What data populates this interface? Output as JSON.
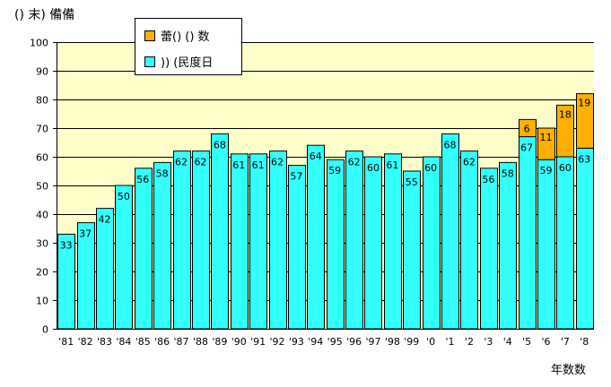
{
  "chart_data": {
    "type": "bar",
    "stacked": true,
    "title": "",
    "ylabel": "() 末) 備備",
    "xlabel": "年数数",
    "ylim": [
      0,
      100
    ],
    "yticks": [
      0,
      10,
      20,
      30,
      40,
      50,
      60,
      70,
      80,
      90,
      100
    ],
    "grid": true,
    "legend_position": "top-left",
    "categories": [
      "'81",
      "'82",
      "'83",
      "'84",
      "'85",
      "'86",
      "'87",
      "'88",
      "'89",
      "'90",
      "'91",
      "'92",
      "'93",
      "'94",
      "'95",
      "'96",
      "'97",
      "'98",
      "'99",
      "'0",
      "'1",
      "'2",
      "'3",
      "'4",
      "'5",
      "'6",
      "'7",
      "'8"
    ],
    "series": [
      {
        "name": ")) (民度日",
        "color": "#33ffff",
        "values": [
          33,
          37,
          42,
          50,
          56,
          58,
          62,
          62,
          68,
          61,
          61,
          62,
          57,
          64,
          59,
          62,
          60,
          61,
          55,
          60,
          68,
          62,
          56,
          58,
          67,
          59,
          60,
          63
        ],
        "labels": [
          "33",
          "37",
          "42",
          "50",
          "56",
          "58",
          "62",
          "62",
          "68",
          "61",
          "61",
          "62",
          "57",
          "64",
          "59",
          "62",
          "60",
          "61",
          "55",
          "60",
          "68",
          "62",
          "56",
          "58",
          "67",
          "59",
          "60",
          "63"
        ]
      },
      {
        "name": "蕾() () 数",
        "color": "#ffb000",
        "values": [
          0,
          0,
          0,
          0,
          0,
          0,
          0,
          0,
          0,
          0,
          0,
          0,
          0,
          0,
          0,
          0,
          0,
          0,
          0,
          0,
          0,
          0,
          0,
          0,
          6,
          11,
          18,
          19
        ],
        "labels": [
          "",
          "",
          "",
          "",
          "",
          "",
          "",
          "",
          "",
          "",
          "",
          "",
          "",
          "",
          "",
          "",
          "",
          "",
          "",
          "",
          "",
          "",
          "",
          "",
          "6",
          "11",
          "18",
          "19"
        ]
      }
    ],
    "plot_background": "#ffffcc",
    "grid_color": "#000000"
  }
}
